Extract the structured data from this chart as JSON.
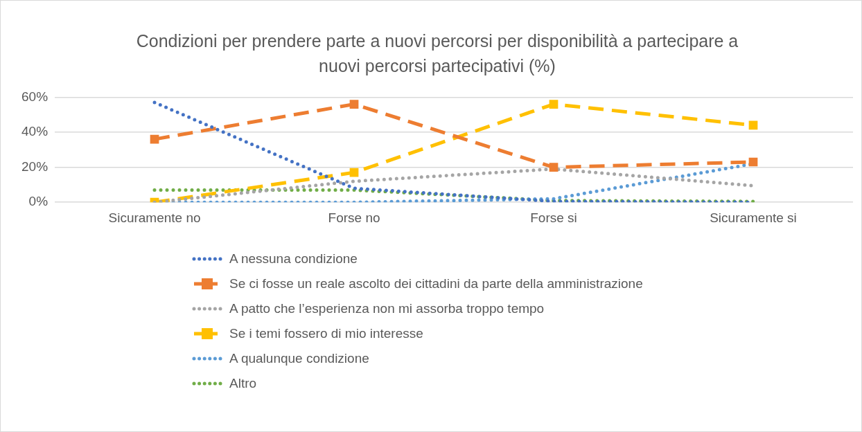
{
  "chart_data": {
    "type": "line",
    "title": "Condizioni per prendere parte a nuovi percorsi per disponibilità a partecipare a nuovi percorsi partecipativi  (%)",
    "categories": [
      "Sicuramente no",
      "Forse no",
      "Forse si",
      "Sicuramente si"
    ],
    "ylim": [
      0,
      60
    ],
    "yticks": [
      {
        "value": 0,
        "label": "0%"
      },
      {
        "value": 20,
        "label": "20%"
      },
      {
        "value": 40,
        "label": "40%"
      },
      {
        "value": 60,
        "label": "60%"
      }
    ],
    "grid": "y",
    "legend": "bottom",
    "series": [
      {
        "name": "A nessuna condizione",
        "color": "#4472c4",
        "values": [
          57,
          8,
          0.5,
          0
        ],
        "line_style": "dotted",
        "marker": "none"
      },
      {
        "name": "Se ci fosse un reale ascolto dei cittadini da parte della amministrazione",
        "color": "#ed7d31",
        "values": [
          36,
          56,
          20,
          23
        ],
        "line_style": "dashed",
        "marker": "square"
      },
      {
        "name": "A patto che l’esperienza non mi assorba troppo tempo",
        "color": "#a5a5a5",
        "values": [
          0,
          12,
          19,
          9.5
        ],
        "line_style": "dotted",
        "marker": "none"
      },
      {
        "name": "Se i temi fossero di mio interesse",
        "color": "#ffc000",
        "values": [
          0,
          17,
          56,
          44
        ],
        "line_style": "dashed",
        "marker": "square"
      },
      {
        "name": "A qualunque condizione",
        "color": "#5b9bd5",
        "values": [
          0,
          0,
          2,
          22
        ],
        "line_style": "dotted",
        "marker": "none"
      },
      {
        "name": "Altro",
        "color": "#70ad47",
        "values": [
          7,
          7,
          1,
          0.5
        ],
        "line_style": "dotted",
        "marker": "none"
      }
    ]
  }
}
